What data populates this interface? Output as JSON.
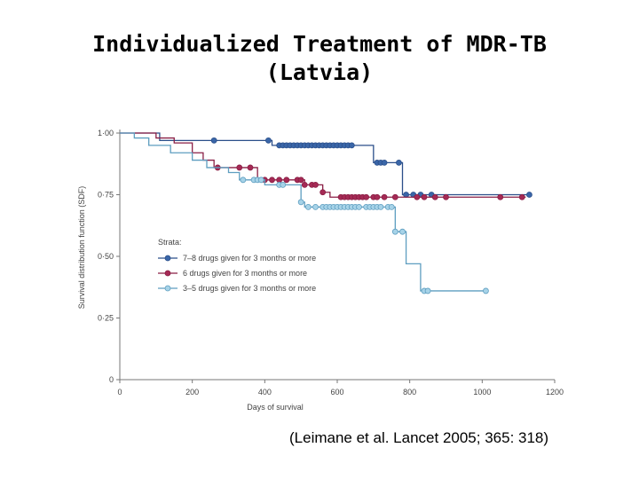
{
  "slide": {
    "title_line1": "Individualized Treatment of MDR-TB",
    "title_line2": "(Latvia)",
    "citation": "(Leimane et al. Lancet 2005; 365: 318)"
  },
  "chart_data": {
    "type": "line",
    "title": "",
    "xlabel": "Days of survival",
    "ylabel": "Survival distribution function (SDF)",
    "xlim": [
      0,
      1200
    ],
    "ylim": [
      0,
      1
    ],
    "x_ticks": [
      0,
      200,
      400,
      600,
      800,
      1000,
      1200
    ],
    "x_tick_labels": [
      "0",
      "200",
      "400",
      "600",
      "800",
      "1000",
      "1200"
    ],
    "y_ticks": [
      0,
      0.25,
      0.5,
      0.75,
      1
    ],
    "y_tick_labels": [
      "0",
      "0·25",
      "0·50",
      "0·75",
      "1·00"
    ],
    "grid": false,
    "legend_title": "Strata:",
    "legend_position": "center-left",
    "series": [
      {
        "name": "7–8 drugs given for 3 months or more",
        "color": "#2b4f8a",
        "fill": "#3a66a8",
        "steps": [
          [
            0,
            1.0
          ],
          [
            110,
            0.97
          ],
          [
            420,
            0.95
          ],
          [
            700,
            0.88
          ],
          [
            780,
            0.75
          ],
          [
            1130,
            0.75
          ]
        ],
        "censored_x": [
          260,
          410,
          440,
          450,
          460,
          470,
          480,
          490,
          500,
          510,
          520,
          530,
          540,
          550,
          560,
          570,
          580,
          590,
          600,
          610,
          620,
          630,
          640,
          710,
          720,
          730,
          770,
          790,
          810,
          830,
          860,
          1130
        ]
      },
      {
        "name": "6 drugs given for 3 months or more",
        "color": "#8a1f45",
        "fill": "#a52a55",
        "steps": [
          [
            0,
            1.0
          ],
          [
            100,
            0.98
          ],
          [
            150,
            0.96
          ],
          [
            200,
            0.92
          ],
          [
            230,
            0.89
          ],
          [
            260,
            0.86
          ],
          [
            380,
            0.81
          ],
          [
            510,
            0.79
          ],
          [
            560,
            0.76
          ],
          [
            580,
            0.74
          ],
          [
            1120,
            0.74
          ]
        ],
        "censored_x": [
          270,
          330,
          360,
          400,
          420,
          440,
          460,
          490,
          500,
          510,
          530,
          540,
          560,
          610,
          620,
          630,
          640,
          650,
          660,
          670,
          680,
          700,
          710,
          730,
          760,
          820,
          840,
          870,
          900,
          1050,
          1110
        ]
      },
      {
        "name": "3–5 drugs given for 3 months or more",
        "color": "#5e9ec0",
        "fill": "#a7d3e8",
        "steps": [
          [
            0,
            1.0
          ],
          [
            40,
            0.98
          ],
          [
            80,
            0.95
          ],
          [
            140,
            0.92
          ],
          [
            200,
            0.89
          ],
          [
            240,
            0.86
          ],
          [
            300,
            0.84
          ],
          [
            330,
            0.81
          ],
          [
            400,
            0.79
          ],
          [
            500,
            0.72
          ],
          [
            510,
            0.7
          ],
          [
            760,
            0.6
          ],
          [
            790,
            0.47
          ],
          [
            830,
            0.36
          ],
          [
            1010,
            0.36
          ]
        ],
        "censored_x": [
          340,
          370,
          380,
          390,
          440,
          450,
          500,
          520,
          540,
          560,
          570,
          580,
          590,
          600,
          610,
          620,
          630,
          640,
          650,
          660,
          680,
          690,
          700,
          710,
          720,
          740,
          750,
          760,
          780,
          840,
          850,
          1010
        ]
      }
    ]
  }
}
